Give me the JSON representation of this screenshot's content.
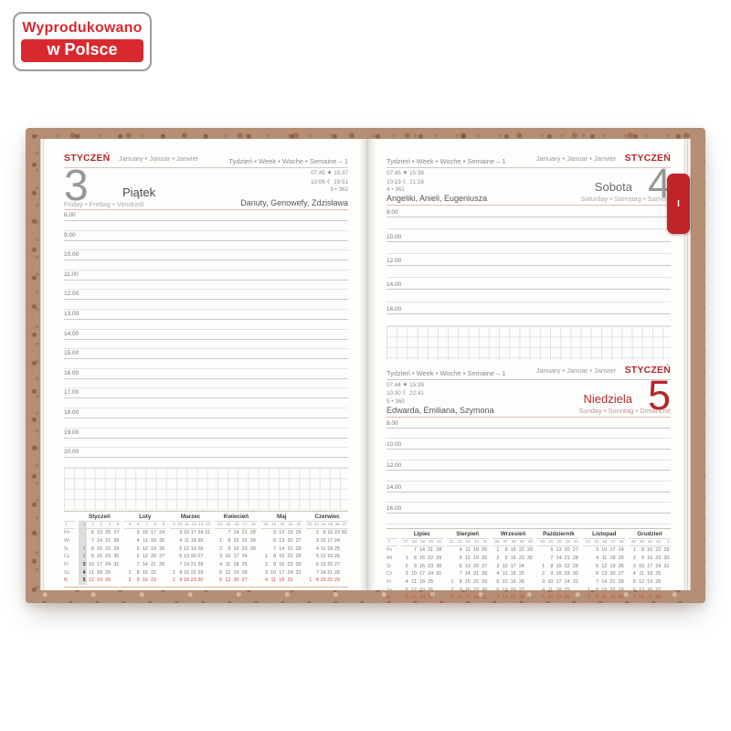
{
  "badge": {
    "line1": "Wyprodukowano",
    "line2": "w Polsce"
  },
  "month_tab": "I",
  "icons": {
    "sun": "☀",
    "moon": "☾"
  },
  "colors": {
    "accent_red": "#b4282e",
    "tab_red": "#c1232b",
    "badge_red": "#d8292f"
  },
  "pages": {
    "left": {
      "month_pl": "STYCZEŃ",
      "month_langs": "January • Januar • Janvier",
      "week_text": "Tydzień • Week • Woche • Semaine – 1",
      "day_number": "3",
      "day_name_pl": "Piątek",
      "day_langs": "Friday • Freitag • Vendredi",
      "sunrise": "07:45",
      "sunset": "15:37",
      "moonrise": "10:06",
      "moonset": "19:51",
      "day_of_year": "3 • 362",
      "name_days": "Danuty, Genowefy, Zdzisława",
      "hours": [
        "8.00",
        "9.00",
        "10.00",
        "11.00",
        "12.00",
        "13.00",
        "14.00",
        "15.00",
        "16.00",
        "17.00",
        "18.00",
        "19.00",
        "20.00"
      ]
    },
    "right_top": {
      "month_pl": "STYCZEŃ",
      "month_langs": "January • Januar • Janvier",
      "week_text": "Tydzień • Week • Woche • Semaine – 1",
      "day_number": "4",
      "day_name_pl": "Sobota",
      "day_langs": "Saturday • Samstag • Samedi",
      "sunrise": "07:45",
      "sunset": "15:38",
      "moonrise": "10:19",
      "moonset": "21:16",
      "day_of_year": "4 • 361",
      "name_days": "Angeliki, Anieli, Eugeniusza",
      "hour_slots": [
        "8.00",
        "",
        "10.00",
        "",
        "12.00",
        "",
        "14.00",
        "",
        "16.00",
        ""
      ]
    },
    "right_bottom": {
      "month_pl": "STYCZEŃ",
      "month_langs": "January • Januar • Janvier",
      "week_text": "Tydzień • Week • Woche • Semaine – 1",
      "day_number": "5",
      "day_name_pl": "Niedziela",
      "day_langs": "Sunday • Sonntag • Dimanche",
      "sunrise": "07:44",
      "sunset": "15:39",
      "moonrise": "10:30",
      "moonset": "22:41",
      "day_of_year": "5 • 360",
      "name_days": "Edwarda, Emiliana, Szymona",
      "hour_slots": [
        "8.00",
        "",
        "10.00",
        "",
        "12.00",
        "",
        "14.00",
        "",
        "16.00",
        ""
      ]
    }
  },
  "mini_calendars": {
    "week_col_label": "T",
    "weekday_labels": [
      "Pn",
      "Wt",
      "Śr",
      "Cz",
      "Pt",
      "So",
      "N"
    ],
    "left_months": [
      {
        "name": "Styczeń",
        "weeks": [
          "1",
          "2",
          "3",
          "4",
          "5"
        ],
        "highlight_col": 0,
        "bold_days": [
          "3",
          "4",
          "5"
        ],
        "rows": [
          [
            "",
            "6",
            "13",
            "20",
            "27"
          ],
          [
            "",
            "7",
            "14",
            "21",
            "28"
          ],
          [
            "1",
            "8",
            "15",
            "22",
            "29"
          ],
          [
            "2",
            "9",
            "16",
            "23",
            "30"
          ],
          [
            "3",
            "10",
            "17",
            "24",
            "31"
          ],
          [
            "4",
            "11",
            "18",
            "25",
            ""
          ],
          [
            "5",
            "12",
            "19",
            "26",
            ""
          ]
        ]
      },
      {
        "name": "Luty",
        "weeks": [
          "5",
          "6",
          "7",
          "8",
          "9"
        ],
        "rows": [
          [
            "",
            "3",
            "10",
            "17",
            "24"
          ],
          [
            "",
            "4",
            "11",
            "18",
            "25"
          ],
          [
            "",
            "5",
            "12",
            "19",
            "26"
          ],
          [
            "",
            "6",
            "13",
            "20",
            "27"
          ],
          [
            "",
            "7",
            "14",
            "21",
            "28"
          ],
          [
            "1",
            "8",
            "15",
            "22",
            ""
          ],
          [
            "2",
            "9",
            "16",
            "23",
            ""
          ]
        ]
      },
      {
        "name": "Marzec",
        "weeks": [
          "9",
          "10",
          "11",
          "12",
          "13",
          "14"
        ],
        "rows": [
          [
            "",
            "3",
            "10",
            "17",
            "24",
            "31"
          ],
          [
            "",
            "4",
            "11",
            "18",
            "25",
            ""
          ],
          [
            "",
            "5",
            "12",
            "19",
            "26",
            ""
          ],
          [
            "",
            "6",
            "13",
            "20",
            "27",
            ""
          ],
          [
            "",
            "7",
            "14",
            "21",
            "28",
            ""
          ],
          [
            "1",
            "8",
            "15",
            "22",
            "29",
            ""
          ],
          [
            "2",
            "9",
            "16",
            "23",
            "30",
            ""
          ]
        ]
      },
      {
        "name": "Kwiecień",
        "weeks": [
          "14",
          "15",
          "16",
          "17",
          "18"
        ],
        "rows": [
          [
            "",
            "7",
            "14",
            "21",
            "28"
          ],
          [
            "1",
            "8",
            "15",
            "22",
            "29"
          ],
          [
            "2",
            "9",
            "16",
            "23",
            "30"
          ],
          [
            "3",
            "10",
            "17",
            "24",
            ""
          ],
          [
            "4",
            "11",
            "18",
            "25",
            ""
          ],
          [
            "5",
            "12",
            "19",
            "26",
            ""
          ],
          [
            "6",
            "13",
            "20",
            "27",
            ""
          ]
        ]
      },
      {
        "name": "Maj",
        "weeks": [
          "18",
          "19",
          "20",
          "21",
          "22"
        ],
        "rows": [
          [
            "",
            "5",
            "12",
            "19",
            "26"
          ],
          [
            "",
            "6",
            "13",
            "20",
            "27"
          ],
          [
            "",
            "7",
            "14",
            "21",
            "28"
          ],
          [
            "1",
            "8",
            "15",
            "22",
            "29"
          ],
          [
            "2",
            "9",
            "16",
            "23",
            "30"
          ],
          [
            "3",
            "10",
            "17",
            "24",
            "31"
          ],
          [
            "4",
            "11",
            "18",
            "25",
            ""
          ]
        ]
      },
      {
        "name": "Czerwiec",
        "weeks": [
          "22",
          "23",
          "24",
          "25",
          "26",
          "27"
        ],
        "rows": [
          [
            "",
            "2",
            "9",
            "16",
            "23",
            "30"
          ],
          [
            "",
            "3",
            "10",
            "17",
            "24",
            ""
          ],
          [
            "",
            "4",
            "11",
            "18",
            "25",
            ""
          ],
          [
            "",
            "5",
            "12",
            "19",
            "26",
            ""
          ],
          [
            "",
            "6",
            "13",
            "20",
            "27",
            ""
          ],
          [
            "",
            "7",
            "14",
            "21",
            "28",
            ""
          ],
          [
            "1",
            "8",
            "15",
            "22",
            "29",
            ""
          ]
        ]
      }
    ],
    "right_months": [
      {
        "name": "Lipiec",
        "weeks": [
          "27",
          "28",
          "29",
          "30",
          "31"
        ],
        "rows": [
          [
            "",
            "7",
            "14",
            "21",
            "28"
          ],
          [
            "1",
            "8",
            "15",
            "22",
            "29"
          ],
          [
            "2",
            "9",
            "16",
            "23",
            "30"
          ],
          [
            "3",
            "10",
            "17",
            "24",
            "31"
          ],
          [
            "4",
            "11",
            "18",
            "25",
            ""
          ],
          [
            "5",
            "12",
            "19",
            "26",
            ""
          ],
          [
            "6",
            "13",
            "20",
            "27",
            ""
          ]
        ]
      },
      {
        "name": "Sierpień",
        "weeks": [
          "31",
          "32",
          "33",
          "34",
          "35"
        ],
        "rows": [
          [
            "",
            "4",
            "11",
            "18",
            "25"
          ],
          [
            "",
            "5",
            "12",
            "19",
            "26"
          ],
          [
            "",
            "6",
            "13",
            "20",
            "27"
          ],
          [
            "",
            "7",
            "14",
            "21",
            "28"
          ],
          [
            "1",
            "8",
            "15",
            "22",
            "29"
          ],
          [
            "2",
            "9",
            "16",
            "23",
            "30"
          ],
          [
            "3",
            "10",
            "17",
            "24",
            "31"
          ]
        ]
      },
      {
        "name": "Wrzesień",
        "weeks": [
          "36",
          "37",
          "38",
          "39",
          "40"
        ],
        "rows": [
          [
            "1",
            "8",
            "15",
            "22",
            "29"
          ],
          [
            "2",
            "9",
            "16",
            "23",
            "30"
          ],
          [
            "3",
            "10",
            "17",
            "24",
            ""
          ],
          [
            "4",
            "11",
            "18",
            "25",
            ""
          ],
          [
            "5",
            "12",
            "19",
            "26",
            ""
          ],
          [
            "6",
            "13",
            "20",
            "27",
            ""
          ],
          [
            "7",
            "14",
            "21",
            "28",
            ""
          ]
        ]
      },
      {
        "name": "Październik",
        "weeks": [
          "40",
          "41",
          "42",
          "43",
          "44"
        ],
        "rows": [
          [
            "",
            "6",
            "13",
            "20",
            "27"
          ],
          [
            "",
            "7",
            "14",
            "21",
            "28"
          ],
          [
            "1",
            "8",
            "15",
            "22",
            "29"
          ],
          [
            "2",
            "9",
            "16",
            "23",
            "30"
          ],
          [
            "3",
            "10",
            "17",
            "24",
            "31"
          ],
          [
            "4",
            "11",
            "18",
            "25",
            ""
          ],
          [
            "5",
            "12",
            "19",
            "26",
            ""
          ]
        ]
      },
      {
        "name": "Listopad",
        "weeks": [
          "44",
          "45",
          "46",
          "47",
          "48"
        ],
        "rows": [
          [
            "",
            "3",
            "10",
            "17",
            "24"
          ],
          [
            "",
            "4",
            "11",
            "18",
            "25"
          ],
          [
            "",
            "5",
            "12",
            "19",
            "26"
          ],
          [
            "",
            "6",
            "13",
            "20",
            "27"
          ],
          [
            "",
            "7",
            "14",
            "21",
            "28"
          ],
          [
            "1",
            "8",
            "15",
            "22",
            "29"
          ],
          [
            "2",
            "9",
            "16",
            "23",
            "30"
          ]
        ]
      },
      {
        "name": "Grudzień",
        "weeks": [
          "49",
          "50",
          "51",
          "52",
          "1"
        ],
        "rows": [
          [
            "1",
            "8",
            "15",
            "22",
            "29"
          ],
          [
            "2",
            "9",
            "16",
            "23",
            "30"
          ],
          [
            "3",
            "10",
            "17",
            "24",
            "31"
          ],
          [
            "4",
            "11",
            "18",
            "25",
            ""
          ],
          [
            "5",
            "12",
            "19",
            "26",
            ""
          ],
          [
            "6",
            "13",
            "20",
            "27",
            ""
          ],
          [
            "7",
            "14",
            "21",
            "28",
            ""
          ]
        ]
      }
    ]
  }
}
